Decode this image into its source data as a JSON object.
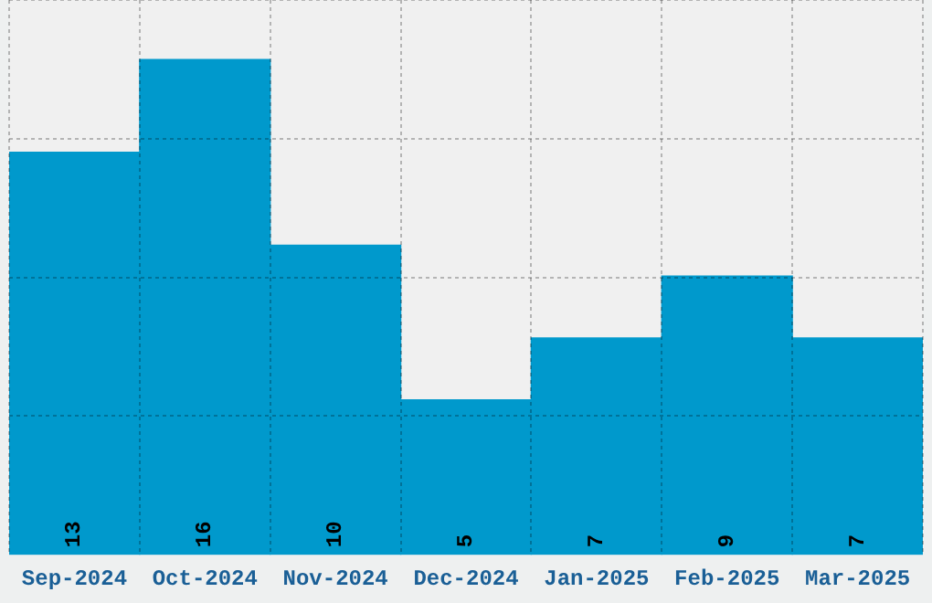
{
  "chart_data": {
    "type": "bar",
    "categories": [
      "Sep-2024",
      "Oct-2024",
      "Nov-2024",
      "Dec-2024",
      "Jan-2025",
      "Feb-2025",
      "Mar-2025"
    ],
    "values": [
      13,
      16,
      10,
      5,
      7,
      9,
      7
    ],
    "color": "#0099cc",
    "ylim": [
      0,
      17.92
    ],
    "yticks": [
      {
        "value": 4.48,
        "label": null
      },
      {
        "value": 8.96,
        "label": null
      },
      {
        "value": 13.44,
        "label": null
      },
      {
        "value": 17.92,
        "label": null
      }
    ],
    "tick_labels": "x",
    "grid": true,
    "data_labels": true
  }
}
